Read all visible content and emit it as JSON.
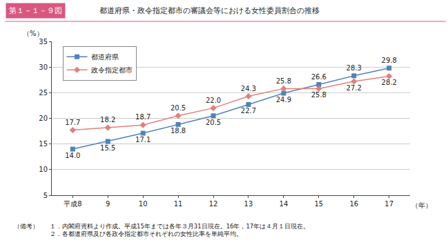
{
  "chart_data": {
    "type": "line",
    "figure_label": "第１－１－９図",
    "title": "都道府県・政令指定都市の審議会等における女性委員割合の推移",
    "ylabel": "（%）",
    "xlabel": "（年）",
    "categories": [
      "平成8",
      "9",
      "10",
      "11",
      "12",
      "13",
      "14",
      "15",
      "16",
      "17"
    ],
    "series": [
      {
        "name": "都道府県",
        "color": "#4f81bd",
        "marker": "square",
        "line_style": "solid",
        "values": [
          14.0,
          15.5,
          17.1,
          18.8,
          20.5,
          22.7,
          24.9,
          26.6,
          28.3,
          29.8
        ],
        "value_labels": [
          "14.0",
          "15.5",
          "17.1",
          "18.8",
          "20.5",
          "22.7",
          "24.9",
          "26.6",
          "28.3",
          "29.8"
        ]
      },
      {
        "name": "政令指定都市",
        "color": "#e0807a",
        "marker": "diamond",
        "line_style": "solid",
        "values": [
          17.7,
          18.2,
          18.7,
          20.5,
          22.0,
          24.3,
          25.8,
          25.8,
          27.2,
          28.2
        ],
        "value_labels": [
          "17.7",
          "18.2",
          "18.7",
          "20.5",
          "22.0",
          "24.3",
          "25.8",
          "25.8",
          "27.2",
          "28.2"
        ]
      }
    ],
    "ylim": [
      5,
      35
    ],
    "yticks": [
      5,
      10,
      15,
      20,
      25,
      30,
      35
    ],
    "grid": true,
    "legend": "top left",
    "data_labels": true,
    "notes_label": "（備考）",
    "notes": [
      "１．内閣府資料より作成。平成15年までは各年３月31日現在。16年，17年は４月１日現在。",
      "２．各都道府県及び各政令指定都市それぞれの女性比率を単純平均。"
    ]
  }
}
